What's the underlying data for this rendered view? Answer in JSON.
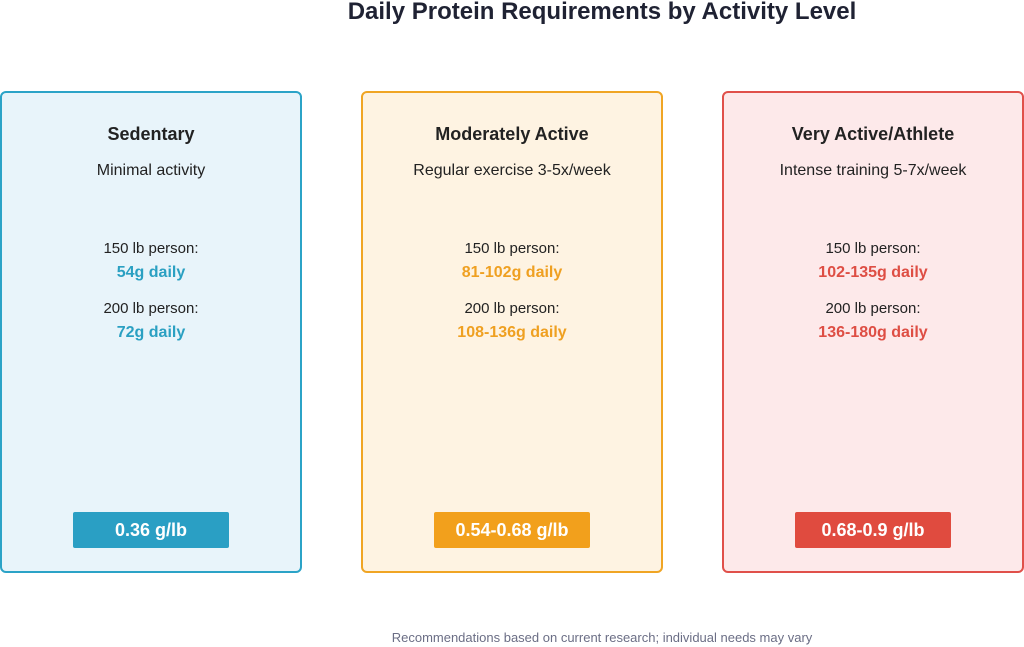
{
  "header": {
    "title": "Daily Protein Requirements by Activity Level"
  },
  "cards": [
    {
      "name": "Sedentary",
      "description": "Minimal activity",
      "rows": [
        {
          "label": "150 lb person:",
          "value": "54g daily"
        },
        {
          "label": "200 lb person:",
          "value": "72g daily"
        }
      ],
      "badge": "0.36 g/lb"
    },
    {
      "name": "Moderately Active",
      "description": "Regular exercise 3-5x/week",
      "rows": [
        {
          "label": "150 lb person:",
          "value": "81-102g daily"
        },
        {
          "label": "200 lb person:",
          "value": "108-136g daily"
        }
      ],
      "badge": "0.54-0.68 g/lb"
    },
    {
      "name": "Very Active/Athlete",
      "description": "Intense training 5-7x/week",
      "rows": [
        {
          "label": "150 lb person:",
          "value": "102-135g daily"
        },
        {
          "label": "200 lb person:",
          "value": "136-180g daily"
        }
      ],
      "badge": "0.68-0.9 g/lb"
    }
  ],
  "footer": {
    "note": "Recommendations based on current research; individual needs may vary"
  }
}
